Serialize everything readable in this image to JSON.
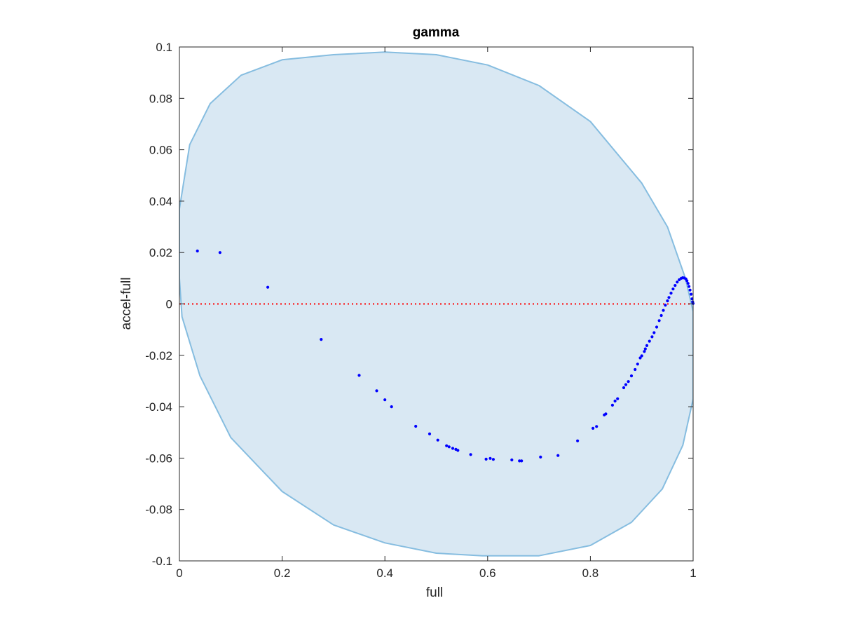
{
  "chart_data": {
    "type": "scatter",
    "title": "gamma",
    "xlabel": "full",
    "ylabel": "accel-full",
    "xlim": [
      0,
      1
    ],
    "ylim": [
      -0.1,
      0.1
    ],
    "xticks": [
      0,
      0.2,
      0.4,
      0.6,
      0.8,
      1
    ],
    "xtick_labels": [
      "0",
      "0.2",
      "0.4",
      "0.6",
      "0.8",
      "1"
    ],
    "yticks": [
      -0.1,
      -0.08,
      -0.06,
      -0.04,
      -0.02,
      0,
      0.02,
      0.04,
      0.06,
      0.08,
      0.1
    ],
    "ytick_labels": [
      "-0.1",
      "-0.08",
      "-0.06",
      "-0.04",
      "-0.02",
      "0",
      "0.02",
      "0.04",
      "0.06",
      "0.08",
      "0.1"
    ],
    "grid": false,
    "reference_line": {
      "y": 0,
      "style": "dotted",
      "color": "#ff0000"
    },
    "region": {
      "shape": "ellipse",
      "fill_color": "#d9e8f3",
      "edge_color": "#86bde0",
      "boundary": [
        [
          0.0,
          0.037
        ],
        [
          0.02,
          0.062
        ],
        [
          0.06,
          0.078
        ],
        [
          0.12,
          0.089
        ],
        [
          0.2,
          0.095
        ],
        [
          0.3,
          0.097
        ],
        [
          0.4,
          0.098
        ],
        [
          0.5,
          0.097
        ],
        [
          0.6,
          0.093
        ],
        [
          0.7,
          0.085
        ],
        [
          0.8,
          0.071
        ],
        [
          0.9,
          0.047
        ],
        [
          0.95,
          0.03
        ],
        [
          0.985,
          0.01
        ],
        [
          1.0,
          -0.003
        ],
        [
          1.0,
          -0.037
        ],
        [
          0.98,
          -0.055
        ],
        [
          0.94,
          -0.072
        ],
        [
          0.88,
          -0.085
        ],
        [
          0.8,
          -0.094
        ],
        [
          0.7,
          -0.098
        ],
        [
          0.59,
          -0.098
        ],
        [
          0.5,
          -0.097
        ],
        [
          0.4,
          -0.093
        ],
        [
          0.3,
          -0.086
        ],
        [
          0.2,
          -0.073
        ],
        [
          0.1,
          -0.052
        ],
        [
          0.04,
          -0.028
        ],
        [
          0.005,
          -0.005
        ],
        [
          0.0,
          0.01
        ]
      ]
    },
    "series": [
      {
        "color": "#0000ff",
        "points": [
          [
            0.035,
            0.0206
          ],
          [
            0.079,
            0.02
          ],
          [
            0.172,
            0.0065
          ],
          [
            0.276,
            -0.0138
          ],
          [
            0.35,
            -0.0278
          ],
          [
            0.384,
            -0.0338
          ],
          [
            0.4,
            -0.0373
          ],
          [
            0.413,
            -0.04
          ],
          [
            0.46,
            -0.0476
          ],
          [
            0.487,
            -0.0506
          ],
          [
            0.503,
            -0.053
          ],
          [
            0.52,
            -0.0552
          ],
          [
            0.525,
            -0.0556
          ],
          [
            0.532,
            -0.0562
          ],
          [
            0.538,
            -0.0566
          ],
          [
            0.542,
            -0.057
          ],
          [
            0.567,
            -0.0586
          ],
          [
            0.597,
            -0.0604
          ],
          [
            0.605,
            -0.0601
          ],
          [
            0.611,
            -0.0605
          ],
          [
            0.647,
            -0.0607
          ],
          [
            0.662,
            -0.0611
          ],
          [
            0.666,
            -0.0611
          ],
          [
            0.703,
            -0.0596
          ],
          [
            0.737,
            -0.059
          ],
          [
            0.775,
            -0.0533
          ],
          [
            0.805,
            -0.0484
          ],
          [
            0.812,
            -0.0477
          ],
          [
            0.827,
            -0.0432
          ],
          [
            0.83,
            -0.0428
          ],
          [
            0.843,
            -0.0394
          ],
          [
            0.848,
            -0.0378
          ],
          [
            0.853,
            -0.0369
          ],
          [
            0.865,
            -0.0326
          ],
          [
            0.869,
            -0.0314
          ],
          [
            0.874,
            -0.0302
          ],
          [
            0.88,
            -0.028
          ],
          [
            0.887,
            -0.0255
          ],
          [
            0.892,
            -0.0234
          ],
          [
            0.897,
            -0.021
          ],
          [
            0.9,
            -0.0202
          ],
          [
            0.905,
            -0.0185
          ],
          [
            0.907,
            -0.0175
          ],
          [
            0.91,
            -0.0162
          ],
          [
            0.915,
            -0.0145
          ],
          [
            0.92,
            -0.0128
          ],
          [
            0.924,
            -0.0112
          ],
          [
            0.929,
            -0.009
          ],
          [
            0.934,
            -0.0065
          ],
          [
            0.938,
            -0.0045
          ],
          [
            0.942,
            -0.0025
          ],
          [
            0.946,
            -0.0005
          ],
          [
            0.95,
            0.0012
          ],
          [
            0.953,
            0.0025
          ],
          [
            0.957,
            0.0042
          ],
          [
            0.961,
            0.0058
          ],
          [
            0.965,
            0.0072
          ],
          [
            0.969,
            0.0085
          ],
          [
            0.973,
            0.0094
          ],
          [
            0.977,
            0.01
          ],
          [
            0.98,
            0.0102
          ],
          [
            0.983,
            0.0101
          ],
          [
            0.986,
            0.0097
          ],
          [
            0.988,
            0.009
          ],
          [
            0.99,
            0.008
          ],
          [
            0.992,
            0.0068
          ],
          [
            0.994,
            0.0054
          ],
          [
            0.996,
            0.0038
          ],
          [
            0.998,
            0.002
          ],
          [
            0.999,
            0.0008
          ],
          [
            1.0,
            0.0002
          ]
        ]
      }
    ]
  }
}
